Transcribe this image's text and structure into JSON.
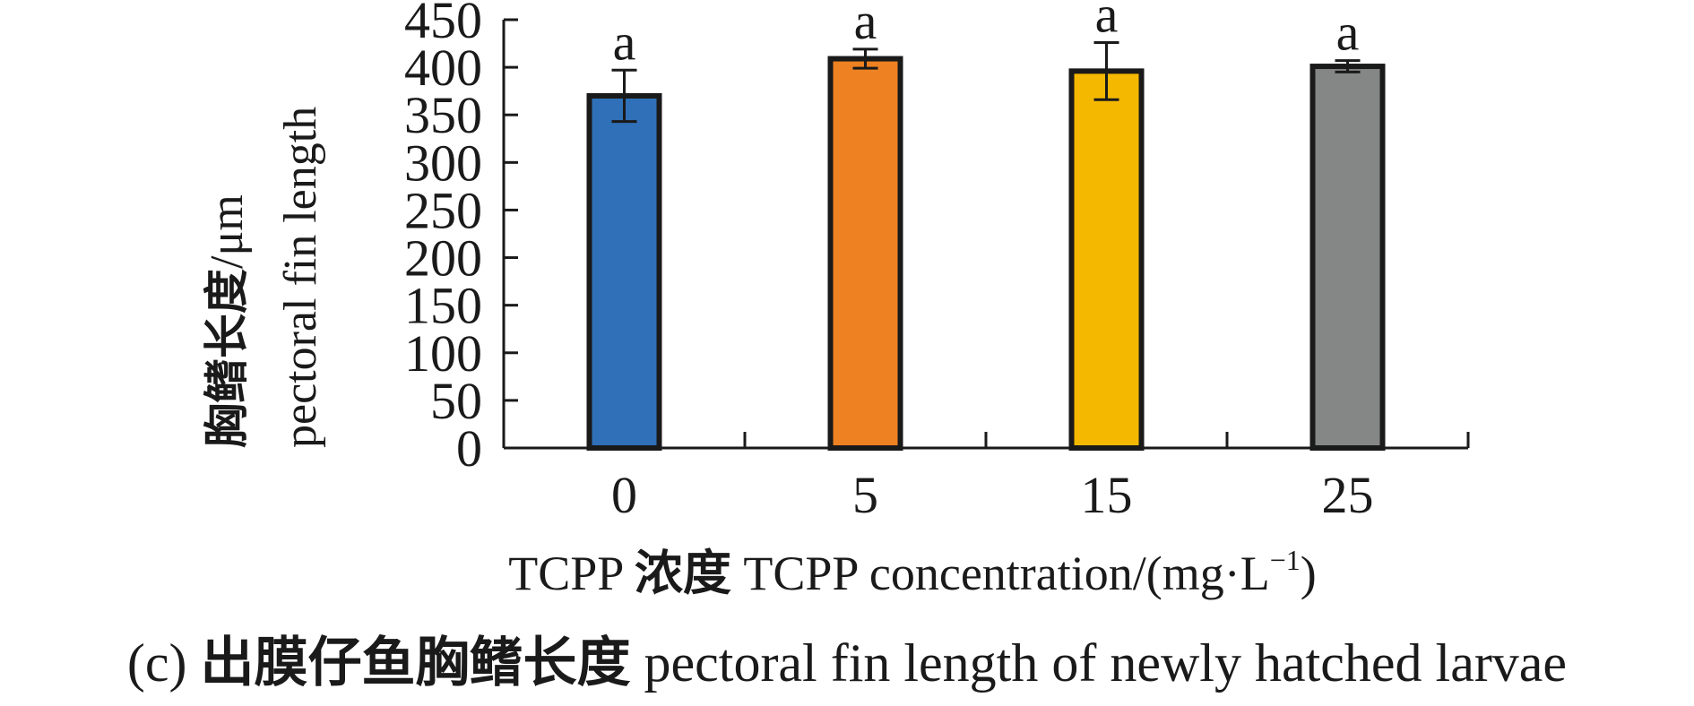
{
  "chart_data": {
    "type": "bar",
    "categories": [
      "0",
      "5",
      "15",
      "25"
    ],
    "values": [
      370,
      409,
      396,
      401
    ],
    "error": [
      27,
      10,
      30,
      6
    ],
    "significance": [
      "a",
      "a",
      "a",
      "a"
    ],
    "ylabel_cn": "胸鳍长度",
    "ylabel_unit": "/μm",
    "ylabel_en": "pectoral fin length",
    "xlabel_prefix": "TCPP ",
    "xlabel_cn": "浓度",
    "xlabel_en": " TCPP concentration/(mg·L",
    "xlabel_sup": "−1",
    "xlabel_end": ")",
    "caption_prefix": "(c) ",
    "caption_cn": "出膜仔鱼胸鳍长度",
    "caption_en": " pectoral fin length of newly hatched larvae",
    "ylim": [
      0,
      450
    ],
    "yticks": [
      0,
      50,
      100,
      150,
      200,
      250,
      300,
      350,
      400,
      450
    ],
    "colors": [
      "#2f70b8",
      "#ee8122",
      "#f5b800",
      "#858787"
    ],
    "edge_color": "#1a1a1a",
    "grid": false
  }
}
